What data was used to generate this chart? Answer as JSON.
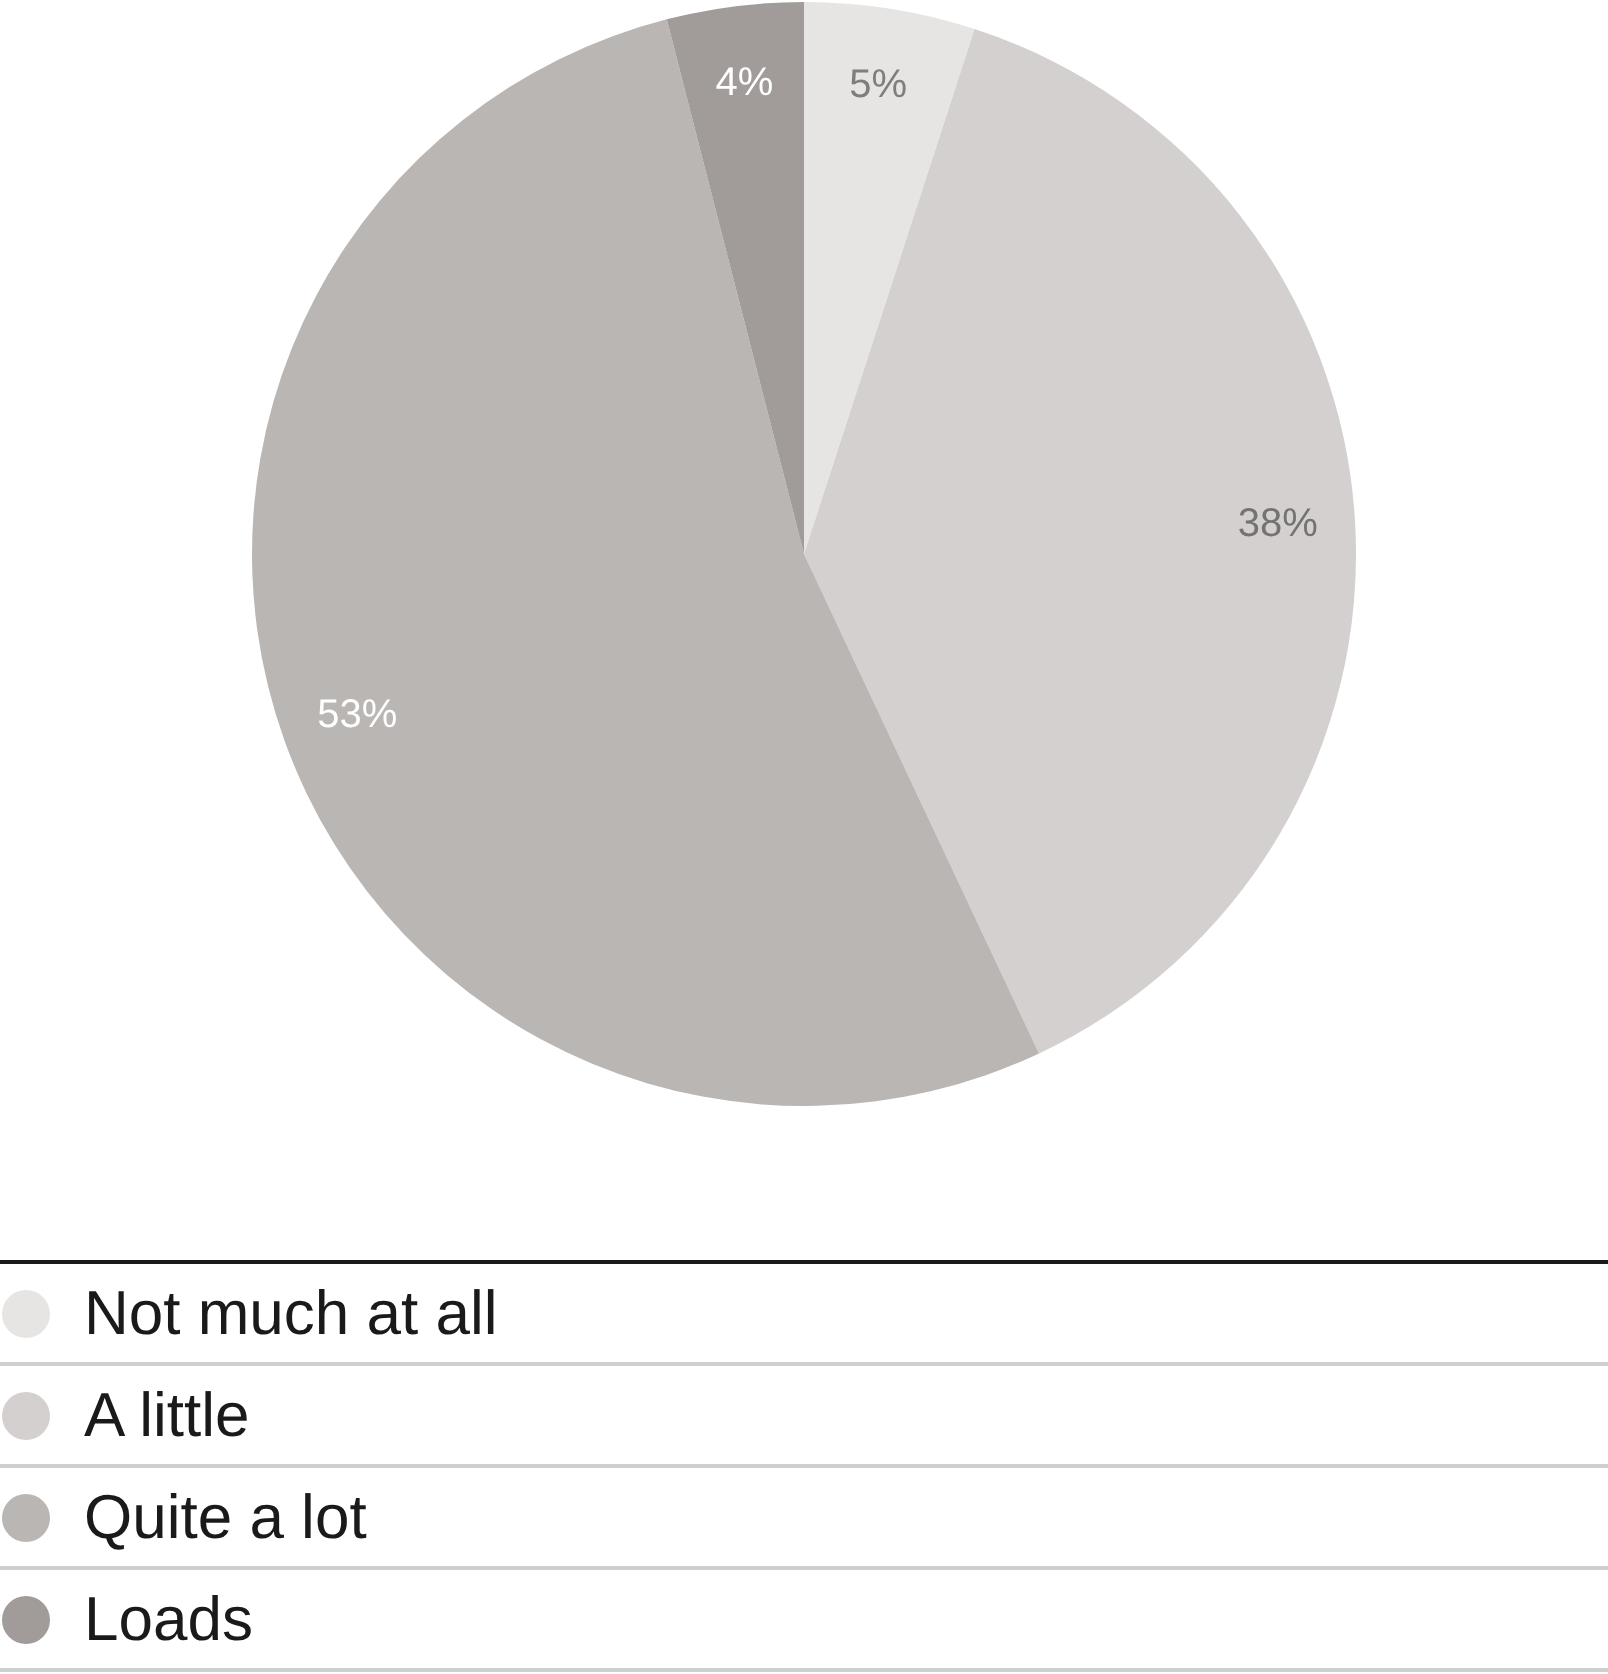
{
  "chart_data": {
    "type": "pie",
    "categories": [
      "Not much at all",
      "A little",
      "Quite a lot",
      "Loads"
    ],
    "values": [
      5,
      38,
      53,
      4
    ],
    "colors": [
      "#e6e5e4",
      "#d3d0cf",
      "#bab6b3",
      "#a19c99"
    ],
    "value_labels": [
      "5%",
      "38%",
      "53%",
      "4%"
    ],
    "legend": "bottom"
  }
}
